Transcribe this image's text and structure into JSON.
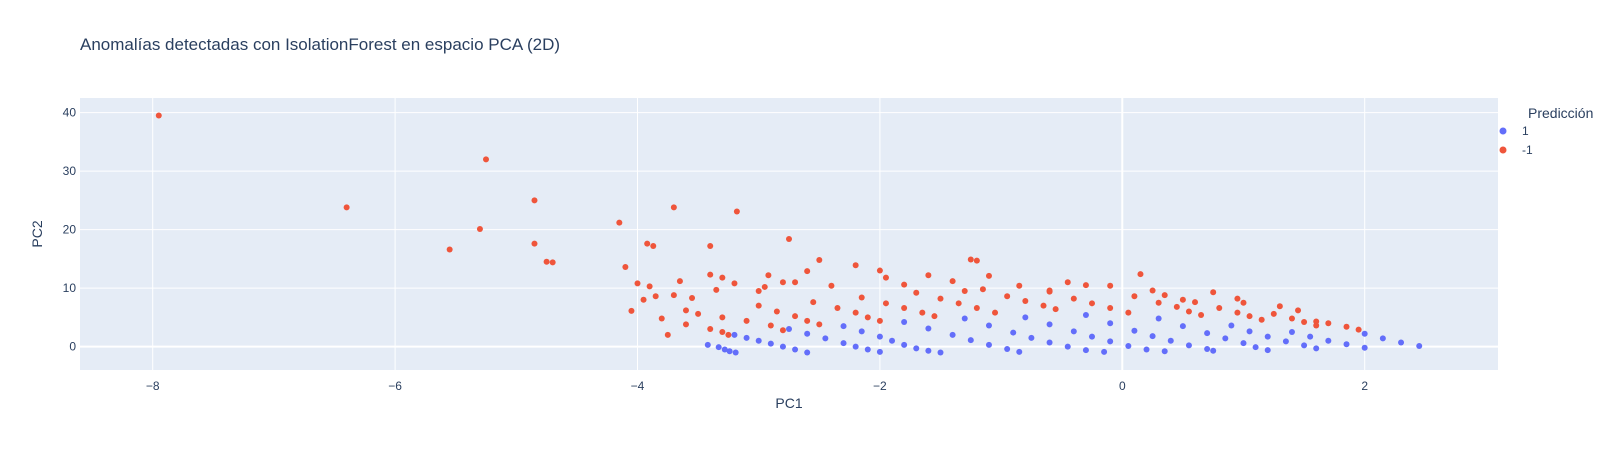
{
  "chart_data": {
    "type": "scatter",
    "title": "Anomalías detectadas con IsolationForest en espacio PCA (2D)",
    "xlabel": "PC1",
    "ylabel": "PC2",
    "xlim": [
      -8.6,
      3.1
    ],
    "ylim": [
      -4,
      42.5
    ],
    "xticks": [
      -8,
      -6,
      -4,
      -2,
      0,
      2
    ],
    "xtick_labels": [
      "−8",
      "−6",
      "−4",
      "−2",
      "0",
      "2"
    ],
    "yticks": [
      0,
      10,
      20,
      30,
      40
    ],
    "yticks_labels": [
      "0",
      "10",
      "20",
      "30",
      "40"
    ],
    "grid": true,
    "plot_background": "#e5ecf6",
    "legend": {
      "title": "Predicción",
      "placement": "right"
    },
    "series": [
      {
        "name": "1",
        "color": "#636efa",
        "points": [
          [
            -3.42,
            0.3
          ],
          [
            -3.33,
            -0.1
          ],
          [
            -3.28,
            -0.5
          ],
          [
            -3.24,
            -0.8
          ],
          [
            -3.19,
            -1.0
          ],
          [
            -3.2,
            2.0
          ],
          [
            -3.1,
            1.5
          ],
          [
            -3.0,
            1.0
          ],
          [
            -2.9,
            0.5
          ],
          [
            -2.8,
            0.0
          ],
          [
            -2.7,
            -0.5
          ],
          [
            -2.6,
            -1.0
          ],
          [
            -2.75,
            3.0
          ],
          [
            -2.6,
            2.2
          ],
          [
            -2.45,
            1.4
          ],
          [
            -2.3,
            0.6
          ],
          [
            -2.2,
            0.0
          ],
          [
            -2.1,
            -0.5
          ],
          [
            -2.0,
            -0.9
          ],
          [
            -2.3,
            3.5
          ],
          [
            -2.15,
            2.6
          ],
          [
            -2.0,
            1.7
          ],
          [
            -1.9,
            1.0
          ],
          [
            -1.8,
            0.3
          ],
          [
            -1.7,
            -0.3
          ],
          [
            -1.6,
            -0.7
          ],
          [
            -1.5,
            -1.0
          ],
          [
            -1.8,
            4.2
          ],
          [
            -1.6,
            3.1
          ],
          [
            -1.4,
            2.0
          ],
          [
            -1.25,
            1.1
          ],
          [
            -1.1,
            0.3
          ],
          [
            -0.95,
            -0.4
          ],
          [
            -0.85,
            -0.9
          ],
          [
            -1.3,
            4.8
          ],
          [
            -1.1,
            3.6
          ],
          [
            -0.9,
            2.4
          ],
          [
            -0.75,
            1.5
          ],
          [
            -0.6,
            0.7
          ],
          [
            -0.45,
            0.0
          ],
          [
            -0.3,
            -0.6
          ],
          [
            -0.15,
            -0.9
          ],
          [
            -0.8,
            5.0
          ],
          [
            -0.6,
            3.8
          ],
          [
            -0.4,
            2.6
          ],
          [
            -0.25,
            1.7
          ],
          [
            -0.1,
            0.9
          ],
          [
            0.05,
            0.1
          ],
          [
            0.2,
            -0.5
          ],
          [
            0.35,
            -0.8
          ],
          [
            -0.3,
            5.4
          ],
          [
            -0.1,
            4.0
          ],
          [
            0.1,
            2.7
          ],
          [
            0.25,
            1.8
          ],
          [
            0.4,
            1.0
          ],
          [
            0.55,
            0.2
          ],
          [
            0.7,
            -0.4
          ],
          [
            0.75,
            -0.7
          ],
          [
            0.3,
            4.8
          ],
          [
            0.5,
            3.5
          ],
          [
            0.7,
            2.3
          ],
          [
            0.85,
            1.4
          ],
          [
            1.0,
            0.6
          ],
          [
            1.1,
            -0.1
          ],
          [
            1.2,
            -0.6
          ],
          [
            0.9,
            3.6
          ],
          [
            1.05,
            2.6
          ],
          [
            1.2,
            1.7
          ],
          [
            1.35,
            0.9
          ],
          [
            1.5,
            0.2
          ],
          [
            1.6,
            -0.3
          ],
          [
            1.4,
            2.5
          ],
          [
            1.55,
            1.7
          ],
          [
            1.7,
            1.0
          ],
          [
            1.85,
            0.4
          ],
          [
            2.0,
            -0.2
          ],
          [
            2.0,
            2.2
          ],
          [
            2.15,
            1.4
          ],
          [
            2.3,
            0.7
          ],
          [
            2.45,
            0.1
          ]
        ]
      },
      {
        "name": "-1",
        "color": "#ef553b",
        "points": [
          [
            -7.95,
            39.5
          ],
          [
            -6.4,
            23.8
          ],
          [
            -5.55,
            16.6
          ],
          [
            -5.3,
            20.1
          ],
          [
            -5.25,
            32.0
          ],
          [
            -4.85,
            25.0
          ],
          [
            -4.85,
            17.6
          ],
          [
            -4.75,
            14.5
          ],
          [
            -4.7,
            14.4
          ],
          [
            -4.15,
            21.2
          ],
          [
            -4.1,
            13.6
          ],
          [
            -4.05,
            6.1
          ],
          [
            -4.0,
            10.8
          ],
          [
            -3.95,
            8.0
          ],
          [
            -3.92,
            17.6
          ],
          [
            -3.87,
            17.2
          ],
          [
            -3.8,
            4.8
          ],
          [
            -3.75,
            2.0
          ],
          [
            -3.7,
            23.8
          ],
          [
            -3.65,
            11.2
          ],
          [
            -3.6,
            6.2
          ],
          [
            -3.4,
            17.2
          ],
          [
            -3.4,
            12.3
          ],
          [
            -3.3,
            11.8
          ],
          [
            -3.18,
            23.1
          ],
          [
            -3.0,
            9.5
          ],
          [
            -2.92,
            12.2
          ],
          [
            -2.75,
            18.4
          ],
          [
            -2.7,
            11.0
          ],
          [
            -2.6,
            12.9
          ],
          [
            -2.5,
            14.8
          ],
          [
            -2.4,
            10.4
          ],
          [
            -2.2,
            13.9
          ],
          [
            -2.0,
            13.0
          ],
          [
            -1.95,
            11.8
          ],
          [
            -1.8,
            10.6
          ],
          [
            -1.6,
            12.2
          ],
          [
            -1.4,
            11.2
          ],
          [
            -1.3,
            9.5
          ],
          [
            -1.25,
            14.9
          ],
          [
            -1.2,
            14.7
          ],
          [
            -1.1,
            12.1
          ],
          [
            -0.85,
            10.4
          ],
          [
            -0.6,
            9.6
          ],
          [
            -0.45,
            11.0
          ],
          [
            -0.3,
            10.5
          ],
          [
            -0.1,
            10.4
          ],
          [
            0.15,
            12.4
          ],
          [
            0.25,
            9.6
          ],
          [
            0.35,
            8.8
          ],
          [
            0.5,
            8.0
          ],
          [
            0.75,
            9.3
          ],
          [
            0.95,
            8.2
          ],
          [
            1.0,
            7.5
          ],
          [
            1.3,
            6.9
          ],
          [
            1.45,
            6.2
          ],
          [
            1.6,
            4.3
          ],
          [
            1.7,
            4.0
          ],
          [
            -3.6,
            3.8
          ],
          [
            -3.4,
            3.0
          ],
          [
            -3.3,
            2.5
          ],
          [
            -3.25,
            2.0
          ],
          [
            -3.5,
            5.6
          ],
          [
            -3.3,
            5.0
          ],
          [
            -3.1,
            4.4
          ],
          [
            -2.9,
            3.6
          ],
          [
            -2.8,
            2.8
          ],
          [
            -3.0,
            7.0
          ],
          [
            -2.85,
            6.0
          ],
          [
            -2.7,
            5.2
          ],
          [
            -2.6,
            4.4
          ],
          [
            -2.5,
            3.8
          ],
          [
            -2.55,
            7.6
          ],
          [
            -2.35,
            6.6
          ],
          [
            -2.2,
            5.8
          ],
          [
            -2.1,
            5.0
          ],
          [
            -2.0,
            4.4
          ],
          [
            -2.15,
            8.4
          ],
          [
            -1.95,
            7.4
          ],
          [
            -1.8,
            6.6
          ],
          [
            -1.65,
            5.8
          ],
          [
            -1.55,
            5.2
          ],
          [
            -1.7,
            9.2
          ],
          [
            -1.5,
            8.2
          ],
          [
            -1.35,
            7.4
          ],
          [
            -1.2,
            6.6
          ],
          [
            -1.05,
            5.8
          ],
          [
            -1.15,
            9.8
          ],
          [
            -0.95,
            8.6
          ],
          [
            -0.8,
            7.8
          ],
          [
            -0.65,
            7.0
          ],
          [
            -0.55,
            6.4
          ],
          [
            -0.6,
            9.4
          ],
          [
            -0.4,
            8.2
          ],
          [
            -0.25,
            7.4
          ],
          [
            -0.1,
            6.6
          ],
          [
            0.05,
            5.8
          ],
          [
            0.1,
            8.6
          ],
          [
            0.3,
            7.5
          ],
          [
            0.45,
            6.8
          ],
          [
            0.55,
            6.0
          ],
          [
            0.65,
            5.4
          ],
          [
            0.6,
            7.6
          ],
          [
            0.8,
            6.6
          ],
          [
            0.95,
            5.8
          ],
          [
            1.05,
            5.2
          ],
          [
            1.15,
            4.6
          ],
          [
            1.25,
            5.6
          ],
          [
            1.4,
            4.8
          ],
          [
            1.5,
            4.2
          ],
          [
            1.6,
            3.6
          ],
          [
            1.85,
            3.4
          ],
          [
            1.95,
            2.9
          ],
          [
            -3.9,
            10.3
          ],
          [
            -3.85,
            8.6
          ],
          [
            -3.7,
            8.8
          ],
          [
            -3.55,
            8.3
          ],
          [
            -3.35,
            9.7
          ],
          [
            -3.2,
            10.8
          ],
          [
            -2.95,
            10.2
          ],
          [
            -2.8,
            11.0
          ]
        ]
      }
    ]
  }
}
